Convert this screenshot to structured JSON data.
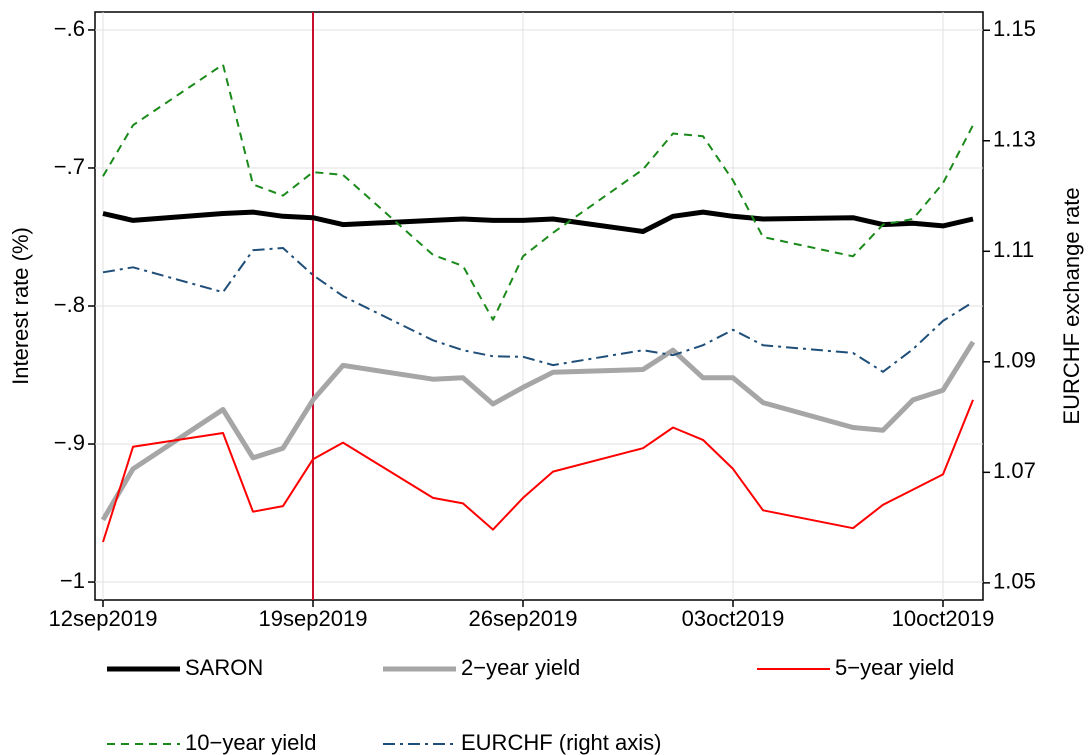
{
  "chart_data": {
    "type": "line",
    "y_label": "Interest rate (%)",
    "y2_label": "EURCHF exchange rate",
    "x": [
      "2019-09-12",
      "2019-09-13",
      "2019-09-16",
      "2019-09-17",
      "2019-09-18",
      "2019-09-19",
      "2019-09-20",
      "2019-09-23",
      "2019-09-24",
      "2019-09-25",
      "2019-09-26",
      "2019-09-27",
      "2019-09-30",
      "2019-10-01",
      "2019-10-02",
      "2019-10-03",
      "2019-10-04",
      "2019-10-07",
      "2019-10-08",
      "2019-10-09",
      "2019-10-10",
      "2019-10-11"
    ],
    "xlim": [
      "2019-09-12",
      "2019-10-11"
    ],
    "xticks": [
      {
        "value": "2019-09-12",
        "label": "12sep2019"
      },
      {
        "value": "2019-09-19",
        "label": "19sep2019"
      },
      {
        "value": "2019-09-26",
        "label": "26sep2019"
      },
      {
        "value": "2019-10-03",
        "label": "03oct2019"
      },
      {
        "value": "2019-10-10",
        "label": "10oct2019"
      }
    ],
    "ylim": [
      -1.013,
      -0.587
    ],
    "yticks": [
      {
        "value": -1,
        "label": "−1"
      },
      {
        "value": -0.9,
        "label": "−.9"
      },
      {
        "value": -0.8,
        "label": "−.8"
      },
      {
        "value": -0.7,
        "label": "−.7"
      },
      {
        "value": -0.6,
        "label": "−.6"
      }
    ],
    "y2lim": [
      1.0469,
      1.1533
    ],
    "y2ticks": [
      1.05,
      1.07,
      1.09,
      1.11,
      1.13,
      1.15
    ],
    "grid": true,
    "vline": {
      "x": "2019-09-19",
      "color": "#c8102e"
    },
    "series": [
      {
        "name": "SARON",
        "color": "#000000",
        "width": 5,
        "dash": "none",
        "values": [
          -0.733,
          -0.738,
          -0.733,
          -0.732,
          -0.735,
          -0.736,
          -0.741,
          -0.738,
          -0.737,
          -0.738,
          -0.738,
          -0.737,
          -0.746,
          -0.735,
          -0.732,
          -0.735,
          -0.737,
          -0.736,
          -0.741,
          -0.74,
          -0.742,
          -0.737
        ]
      },
      {
        "name": "2−year yield",
        "color": "#a6a6a6",
        "width": 5,
        "dash": "none",
        "values": [
          -0.955,
          -0.918,
          -0.875,
          -0.91,
          -0.903,
          -0.868,
          -0.843,
          -0.853,
          -0.852,
          -0.871,
          -0.859,
          -0.848,
          -0.846,
          -0.832,
          -0.852,
          -0.852,
          -0.87,
          -0.888,
          -0.89,
          -0.868,
          -0.861,
          -0.826
        ]
      },
      {
        "name": "5−year yield",
        "color": "#ff0000",
        "width": 2,
        "dash": "none",
        "values": [
          -0.971,
          -0.902,
          -0.892,
          -0.949,
          -0.945,
          -0.911,
          -0.899,
          -0.939,
          -0.943,
          -0.962,
          -0.939,
          -0.92,
          -0.903,
          -0.888,
          -0.897,
          -0.918,
          -0.948,
          -0.961,
          -0.944,
          -0.933,
          -0.922,
          -0.868
        ]
      },
      {
        "name": "10−year yield",
        "color": "#1a8a1a",
        "width": 2,
        "dash": "8 6",
        "values": [
          -0.706,
          -0.669,
          -0.625,
          -0.712,
          -0.72,
          -0.703,
          -0.705,
          -0.763,
          -0.771,
          -0.81,
          -0.764,
          -0.747,
          -0.701,
          -0.675,
          -0.677,
          -0.709,
          -0.75,
          -0.764,
          -0.741,
          -0.737,
          -0.711,
          -0.669
        ]
      },
      {
        "name": "EURCHF (right axis)",
        "color": "#1f4e79",
        "width": 2,
        "dash": "12 5 3 5",
        "axis": "y2",
        "values": [
          1.1062,
          1.1071,
          1.1026,
          1.1102,
          1.1106,
          1.1057,
          1.1019,
          1.0939,
          1.0921,
          1.091,
          1.0909,
          1.0894,
          1.0921,
          1.0912,
          1.093,
          1.0958,
          1.093,
          1.0916,
          1.0882,
          1.0923,
          1.0974,
          1.1008
        ]
      }
    ],
    "legend": "bottom"
  }
}
